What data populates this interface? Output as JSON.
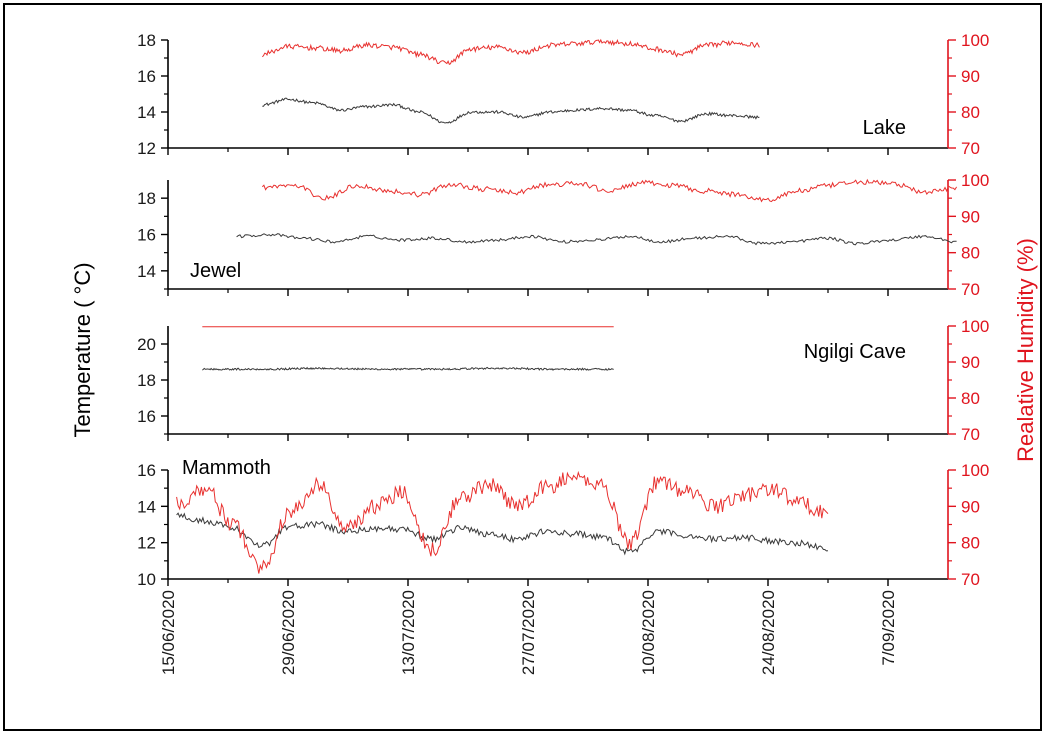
{
  "chart_data": {
    "type": "line",
    "y_left_label": "Temperature ( °C)",
    "y_right_label": "Realative Humidity (%)",
    "x_ticks": [
      "15/06/2020",
      "29/06/2020",
      "13/07/2020",
      "27/07/2020",
      "10/08/2020",
      "24/08/2020",
      "7/09/2020"
    ],
    "x_range": [
      "15/06/2020",
      "14/09/2020"
    ],
    "colors": {
      "temperature": "#3a3a3a",
      "humidity": "#e8312f",
      "right_axis": "#e0141e"
    },
    "panels": [
      {
        "label": "Lake",
        "label_position": "bottom-right",
        "ylim_left": [
          12,
          18
        ],
        "left_ticks": [
          "12",
          "14",
          "16",
          "18"
        ],
        "ylim_right": [
          70,
          100
        ],
        "right_ticks": [
          "70",
          "80",
          "90",
          "100"
        ],
        "date_range": [
          "26/06/2020",
          "23/08/2020"
        ],
        "temperature_knots": [
          14.4,
          14.7,
          14.5,
          14.1,
          14.3,
          14.4,
          14.0,
          13.4,
          14.0,
          14.0,
          13.7,
          14.0,
          14.1,
          14.2,
          14.1,
          13.8,
          13.5,
          13.9,
          13.8,
          13.7
        ],
        "humidity_knots": [
          96.0,
          98.2,
          97.8,
          97.0,
          98.6,
          98.0,
          96.0,
          93.5,
          97.5,
          98.0,
          96.5,
          98.5,
          99.0,
          99.6,
          99.0,
          97.5,
          96.0,
          98.5,
          99.3,
          98.6
        ]
      },
      {
        "label": "Jewel",
        "label_position": "bottom-left",
        "ylim_left": [
          13,
          19
        ],
        "left_ticks": [
          "14",
          "16",
          "18"
        ],
        "ylim_right": [
          70,
          100
        ],
        "right_ticks": [
          "70",
          "80",
          "90",
          "100"
        ],
        "temperature_date_range": [
          "23/06/2020",
          "15/09/2020"
        ],
        "humidity_date_range": [
          "26/06/2020",
          "15/09/2020"
        ],
        "temperature_knots": [
          15.9,
          16.0,
          15.8,
          15.6,
          15.9,
          15.7,
          15.8,
          15.6,
          15.7,
          15.9,
          15.6,
          15.7,
          15.9,
          15.6,
          15.8,
          15.9,
          15.5,
          15.6,
          15.8,
          15.5,
          15.7,
          15.9,
          15.6
        ],
        "humidity_knots": [
          98.0,
          98.5,
          95.0,
          98.5,
          97.0,
          96.0,
          98.8,
          97.5,
          96.5,
          98.6,
          99.0,
          97.0,
          99.2,
          98.5,
          97.0,
          96.0,
          94.5,
          97.0,
          98.5,
          99.5,
          99.0,
          96.5,
          98.0
        ]
      },
      {
        "label": "Ngilgi Cave",
        "label_position": "top-right",
        "ylim_left": [
          15,
          21
        ],
        "left_ticks": [
          "16",
          "18",
          "20"
        ],
        "ylim_right": [
          70,
          100
        ],
        "right_ticks": [
          "70",
          "80",
          "90",
          "100"
        ],
        "date_range": [
          "19/06/2020",
          "06/08/2020"
        ],
        "temperature_knots": [
          18.6,
          18.6,
          18.65,
          18.6,
          18.6,
          18.65,
          18.6,
          18.6
        ],
        "humidity_knots": [
          99.8,
          99.8
        ]
      },
      {
        "label": "Mammoth",
        "label_position": "top-left",
        "ylim_left": [
          10,
          16
        ],
        "left_ticks": [
          "10",
          "12",
          "14",
          "16"
        ],
        "ylim_right": [
          70,
          100
        ],
        "right_ticks": [
          "70",
          "80",
          "90",
          "100"
        ],
        "date_range": [
          "16/06/2020",
          "31/08/2020"
        ],
        "temperature_knots": [
          13.5,
          13.2,
          12.8,
          11.8,
          12.9,
          13.0,
          12.6,
          12.8,
          12.7,
          12.2,
          12.8,
          12.5,
          12.2,
          12.6,
          12.5,
          12.3,
          11.5,
          12.6,
          12.4,
          12.2,
          12.3,
          12.1,
          12.0,
          11.6
        ],
        "humidity_knots": [
          91.0,
          95.0,
          85.0,
          73.0,
          88.0,
          96.0,
          84.0,
          90.0,
          94.0,
          78.0,
          92.0,
          96.0,
          90.0,
          95.0,
          98.0,
          96.0,
          80.0,
          97.0,
          94.0,
          90.0,
          93.0,
          95.0,
          91.0,
          88.0
        ]
      }
    ]
  }
}
